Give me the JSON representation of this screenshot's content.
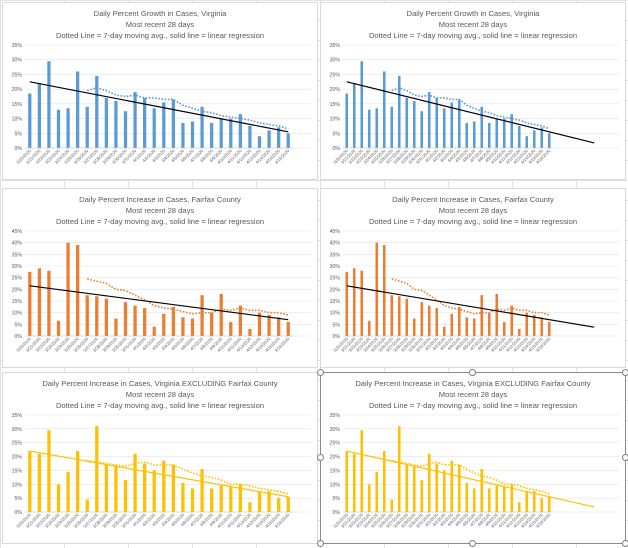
{
  "colors": {
    "blue": "#5b9bd5",
    "orange": "#ed7d31",
    "gold": "#ffc000",
    "black": "#000000"
  },
  "chart_data": [
    {
      "type": "bar",
      "title": "Daily Percent Growth in Cases, Virginia",
      "subtitle1": "Most recent 28 days",
      "subtitle2": "Dotted Line = 7-day moving avg., solid line = linear regression",
      "color": "#5b9bd5",
      "categories": [
        "3/20/2020",
        "3/21/2020",
        "3/22/2020",
        "3/23/2020",
        "3/24/2020",
        "3/25/2020",
        "3/26/2020",
        "3/27/2020",
        "3/28/2020",
        "3/29/2020",
        "3/30/2020",
        "3/31/2020",
        "4/1/2020",
        "4/2/2020",
        "4/3/2020",
        "4/4/2020",
        "4/5/2020",
        "4/6/2020",
        "4/7/2020",
        "4/8/2020",
        "4/9/2020",
        "4/10/2020",
        "4/11/2020",
        "4/12/2020",
        "4/13/2020",
        "4/14/2020",
        "4/15/2020",
        "4/16/2020"
      ],
      "values": [
        18.5,
        22.0,
        29.5,
        13.0,
        13.5,
        26.0,
        14.0,
        24.5,
        17.0,
        16.0,
        12.5,
        19.0,
        17.0,
        13.5,
        15.5,
        16.5,
        8.5,
        9.0,
        14.0,
        8.5,
        10.0,
        10.0,
        11.5,
        7.5,
        4.0,
        6.0,
        7.0,
        5.0
      ],
      "moving_avg": [
        null,
        null,
        null,
        null,
        null,
        null,
        19.5,
        20.5,
        19.5,
        18.0,
        17.5,
        18.0,
        17.0,
        17.0,
        16.5,
        16.5,
        14.5,
        13.5,
        12.5,
        12.0,
        11.0,
        10.5,
        10.0,
        9.5,
        8.5,
        8.0,
        7.5,
        6.5
      ],
      "regression": [
        22.5,
        5.5
      ],
      "ylim": [
        0,
        35
      ],
      "yticks": [
        0,
        5,
        10,
        15,
        20,
        25,
        30,
        35
      ],
      "extend_regression": false
    },
    {
      "type": "bar",
      "title": "Daily Percent Growth in Cases, Virginia",
      "subtitle1": "Most recent 28 days",
      "subtitle2": "Dotted Line = 7-day moving avg., solid line = linear regression",
      "color": "#5b9bd5",
      "categories": [
        "3/20/2020",
        "3/21/2020",
        "3/22/2020",
        "3/23/2020",
        "3/24/2020",
        "3/25/2020",
        "3/26/2020",
        "3/27/2020",
        "3/28/2020",
        "3/29/2020",
        "3/30/2020",
        "3/31/2020",
        "4/1/2020",
        "4/2/2020",
        "4/3/2020",
        "4/4/2020",
        "4/5/2020",
        "4/6/2020",
        "4/7/2020",
        "4/8/2020",
        "4/9/2020",
        "4/10/2020",
        "4/11/2020",
        "4/12/2020",
        "4/13/2020",
        "4/14/2020",
        "4/15/2020",
        "4/16/2020"
      ],
      "values": [
        18.5,
        22.0,
        29.5,
        13.0,
        13.5,
        26.0,
        14.0,
        24.5,
        17.0,
        16.0,
        12.5,
        19.0,
        17.0,
        13.5,
        15.5,
        16.5,
        8.5,
        9.0,
        14.0,
        8.5,
        10.0,
        10.0,
        11.5,
        7.5,
        4.0,
        6.0,
        7.0,
        5.0
      ],
      "moving_avg": [
        null,
        null,
        null,
        null,
        null,
        null,
        19.5,
        20.5,
        19.5,
        18.0,
        17.5,
        18.0,
        17.0,
        17.0,
        16.5,
        16.5,
        14.5,
        13.5,
        12.5,
        12.0,
        11.0,
        10.5,
        10.0,
        9.5,
        8.5,
        8.0,
        7.5,
        6.5
      ],
      "regression": [
        22.5,
        5.5
      ],
      "ylim": [
        0,
        35
      ],
      "yticks": [
        0,
        5,
        10,
        15,
        20,
        25,
        30,
        35
      ],
      "extend_regression": true
    },
    {
      "type": "bar",
      "title": "Daily Percent Increase in Cases, Fairfax County",
      "subtitle1": "Most recent 28 days",
      "subtitle2": "Dotted Line = 7-day moving avg., solid line = linear regression",
      "color": "#ed7d31",
      "categories": [
        "3/20/2020",
        "3/21/2020",
        "3/22/2020",
        "3/23/2020",
        "3/24/2020",
        "3/25/2020",
        "3/26/2020",
        "3/27/2020",
        "3/28/2020",
        "3/29/2020",
        "3/30/2020",
        "3/31/2020",
        "4/1/2020",
        "4/2/2020",
        "4/3/2020",
        "4/4/2020",
        "4/5/2020",
        "4/6/2020",
        "4/7/2020",
        "4/8/2020",
        "4/9/2020",
        "4/10/2020",
        "4/11/2020",
        "4/12/2020",
        "4/13/2020",
        "4/14/2020",
        "4/15/2020",
        "4/16/2020"
      ],
      "values": [
        27.5,
        29.0,
        28.0,
        6.5,
        40.0,
        39.0,
        17.5,
        17.0,
        16.0,
        7.5,
        14.5,
        13.0,
        12.0,
        4.0,
        9.5,
        12.5,
        8.0,
        7.5,
        17.5,
        10.0,
        18.0,
        6.0,
        13.0,
        3.0,
        10.0,
        9.0,
        8.0,
        6.0
      ],
      "moving_avg": [
        null,
        null,
        null,
        null,
        null,
        null,
        24.5,
        23.5,
        22.5,
        20.0,
        19.5,
        17.5,
        15.5,
        13.0,
        12.0,
        11.5,
        10.5,
        9.5,
        10.0,
        10.0,
        11.5,
        11.0,
        12.0,
        11.0,
        11.0,
        10.0,
        10.0,
        9.0
      ],
      "regression": [
        21.5,
        7.0
      ],
      "ylim": [
        0,
        45
      ],
      "yticks": [
        0,
        5,
        10,
        15,
        20,
        25,
        30,
        35,
        40,
        45
      ],
      "extend_regression": false
    },
    {
      "type": "bar",
      "title": "Daily Percent Increase in Cases, Fairfax County",
      "subtitle1": "Most recent 28 days",
      "subtitle2": "Dotted Line = 7-day moving avg., solid line = linear regression",
      "color": "#ed7d31",
      "categories": [
        "3/20/2020",
        "3/21/2020",
        "3/22/2020",
        "3/23/2020",
        "3/24/2020",
        "3/25/2020",
        "3/26/2020",
        "3/27/2020",
        "3/28/2020",
        "3/29/2020",
        "3/30/2020",
        "3/31/2020",
        "4/1/2020",
        "4/2/2020",
        "4/3/2020",
        "4/4/2020",
        "4/5/2020",
        "4/6/2020",
        "4/7/2020",
        "4/8/2020",
        "4/9/2020",
        "4/10/2020",
        "4/11/2020",
        "4/12/2020",
        "4/13/2020",
        "4/14/2020",
        "4/15/2020",
        "4/16/2020"
      ],
      "values": [
        27.5,
        29.0,
        28.0,
        6.5,
        40.0,
        39.0,
        17.5,
        17.0,
        16.0,
        7.5,
        14.5,
        13.0,
        12.0,
        4.0,
        9.5,
        12.5,
        8.0,
        7.5,
        17.5,
        10.0,
        18.0,
        6.0,
        13.0,
        3.0,
        10.0,
        9.0,
        8.0,
        6.0
      ],
      "moving_avg": [
        null,
        null,
        null,
        null,
        null,
        null,
        24.5,
        23.5,
        22.5,
        20.0,
        19.5,
        17.5,
        15.5,
        13.0,
        12.0,
        11.5,
        10.5,
        9.5,
        10.0,
        10.0,
        11.5,
        11.0,
        12.0,
        11.0,
        11.0,
        10.0,
        10.0,
        9.0
      ],
      "regression": [
        21.5,
        7.0
      ],
      "ylim": [
        0,
        45
      ],
      "yticks": [
        0,
        5,
        10,
        15,
        20,
        25,
        30,
        35,
        40,
        45
      ],
      "extend_regression": true
    },
    {
      "type": "bar",
      "title": "Daily Percent Increase in Cases, Virginia EXCLUDING Fairfax County",
      "subtitle1": "Most recent 28 days",
      "subtitle2": "Dotted Line = 7-day moving avg., solid line = linear regression",
      "color": "#ffc000",
      "categories": [
        "3/20/2020",
        "3/21/2020",
        "3/22/2020",
        "3/23/2020",
        "3/24/2020",
        "3/25/2020",
        "3/26/2020",
        "3/27/2020",
        "3/28/2020",
        "3/29/2020",
        "3/30/2020",
        "3/31/2020",
        "4/1/2020",
        "4/2/2020",
        "4/3/2020",
        "4/4/2020",
        "4/5/2020",
        "4/6/2020",
        "4/7/2020",
        "4/8/2020",
        "4/9/2020",
        "4/10/2020",
        "4/11/2020",
        "4/12/2020",
        "4/13/2020",
        "4/14/2020",
        "4/15/2020",
        "4/16/2020"
      ],
      "values": [
        22.0,
        21.0,
        29.5,
        10.0,
        14.5,
        22.0,
        4.5,
        31.0,
        17.0,
        16.5,
        11.5,
        21.0,
        17.5,
        15.0,
        18.5,
        17.0,
        10.5,
        8.5,
        15.5,
        8.5,
        9.5,
        9.0,
        10.0,
        3.5,
        7.5,
        7.5,
        5.0,
        5.5
      ],
      "moving_avg": [
        null,
        null,
        null,
        null,
        null,
        null,
        18.5,
        18.0,
        17.5,
        17.0,
        16.5,
        17.5,
        18.0,
        17.0,
        17.0,
        17.0,
        15.5,
        14.0,
        13.0,
        12.5,
        11.5,
        10.0,
        10.0,
        9.5,
        8.5,
        8.0,
        7.5,
        6.5
      ],
      "regression": [
        22.0,
        5.5
      ],
      "ylim": [
        0,
        35
      ],
      "yticks": [
        0,
        5,
        10,
        15,
        20,
        25,
        30,
        35
      ],
      "extend_regression": false
    },
    {
      "type": "bar",
      "title": "Daily Percent Increase in Cases, Virginia EXCLUDING Fairfax County",
      "subtitle1": "Most recent 28 days",
      "subtitle2": "Dotted Line = 7-day moving avg., solid line = linear regression",
      "color": "#ffc000",
      "categories": [
        "3/20/2020",
        "3/21/2020",
        "3/22/2020",
        "3/23/2020",
        "3/24/2020",
        "3/25/2020",
        "3/26/2020",
        "3/27/2020",
        "3/28/2020",
        "3/29/2020",
        "3/30/2020",
        "3/31/2020",
        "4/1/2020",
        "4/2/2020",
        "4/3/2020",
        "4/4/2020",
        "4/5/2020",
        "4/6/2020",
        "4/7/2020",
        "4/8/2020",
        "4/9/2020",
        "4/10/2020",
        "4/11/2020",
        "4/12/2020",
        "4/13/2020",
        "4/14/2020",
        "4/15/2020",
        "4/16/2020"
      ],
      "values": [
        22.0,
        21.0,
        29.5,
        10.0,
        14.5,
        22.0,
        4.5,
        31.0,
        17.0,
        16.5,
        11.5,
        21.0,
        17.5,
        15.0,
        18.5,
        17.0,
        10.5,
        8.5,
        15.5,
        8.5,
        9.5,
        9.0,
        10.0,
        3.5,
        7.5,
        7.5,
        5.0,
        5.5
      ],
      "moving_avg": [
        null,
        null,
        null,
        null,
        null,
        null,
        18.5,
        18.0,
        17.5,
        17.0,
        16.5,
        17.5,
        18.0,
        17.0,
        17.0,
        17.0,
        15.5,
        14.0,
        13.0,
        12.5,
        11.5,
        10.0,
        10.0,
        9.5,
        8.5,
        8.0,
        7.5,
        6.5
      ],
      "regression": [
        22.0,
        5.5
      ],
      "ylim": [
        0,
        35
      ],
      "yticks": [
        0,
        5,
        10,
        15,
        20,
        25,
        30,
        35
      ],
      "extend_regression": true
    }
  ]
}
